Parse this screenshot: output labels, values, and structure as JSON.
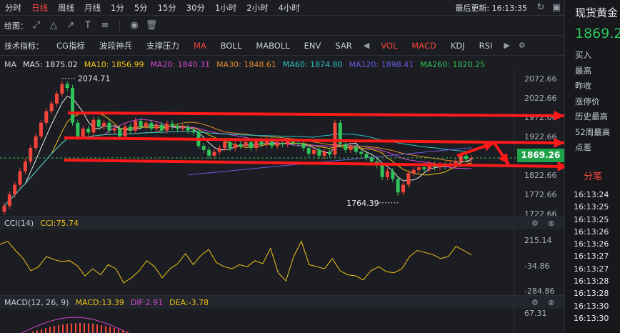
{
  "periods": [
    "分时",
    "日线",
    "周线",
    "月线",
    "1分",
    "5分",
    "15分",
    "30分",
    "1小时",
    "2小时",
    "4小时"
  ],
  "active_period": "日线",
  "last_update": "最后更新: 16:13:35",
  "draw_label": "绘图：",
  "indicator_label": "技术指标：",
  "indicators": [
    "CG指标",
    "波段神兵",
    "支撑压力",
    "MA",
    "BOLL",
    "MABOLL",
    "ENV",
    "SAR",
    "VOL",
    "MACD",
    "KDJ",
    "RSI"
  ],
  "indicators_active": [
    "MA",
    "VOL",
    "MACD"
  ],
  "ma_legend": [
    {
      "label": "MA",
      "color": "#c8ccd4"
    },
    {
      "label": "MA5: 1875.02",
      "color": "#e6e8ec"
    },
    {
      "label": "MA10: 1856.99",
      "color": "#f0c419"
    },
    {
      "label": "MA20: 1840.31",
      "color": "#d24bd2"
    },
    {
      "label": "MA30: 1848.61",
      "color": "#e08a2e"
    },
    {
      "label": "MA60: 1874.80",
      "color": "#2ec4c4"
    },
    {
      "label": "MA120: 1898.41",
      "color": "#6a5ae0"
    },
    {
      "label": "MA260: 1820.25",
      "color": "#2fc35a"
    }
  ],
  "price_axis": [
    "2072.66",
    "2022.66",
    "1972.66",
    "1922.66",
    "1872.66",
    "1822.66",
    "1772.66",
    "1722.66"
  ],
  "current_price_tag": "1869.26",
  "annotations": {
    "high": "2074.71",
    "low": "1764.39"
  },
  "cci_legend": [
    {
      "label": "CCI(14)",
      "color": "#c8ccd4"
    },
    {
      "label": "CCI:75.74",
      "color": "#f0c419"
    }
  ],
  "cci_axis": [
    "215.14",
    "-34.86",
    "-284.86"
  ],
  "macd_legend": [
    {
      "label": "MACD(12, 26, 9)",
      "color": "#c8ccd4"
    },
    {
      "label": "MACD:13.39",
      "color": "#f0c419"
    },
    {
      "label": "DIF:2.91",
      "color": "#d24bd2"
    },
    {
      "label": "DEA:-3.78",
      "color": "#f0c419"
    }
  ],
  "macd_axis": [
    "67.31"
  ],
  "side": {
    "name": "现货黄金",
    "price": "1869.2",
    "quote_labels": [
      "买入",
      "最高",
      "昨收",
      "涨停价",
      "历史最高",
      "52周最高",
      "点差"
    ],
    "fenbi_title": "分笔",
    "times": [
      "16:13:24",
      "16:13:25",
      "16:13:25",
      "16:13:26",
      "16:13:26",
      "16:13:27",
      "16:13:27",
      "16:13:28",
      "16:13:28",
      "16:13:30",
      "16:13:30"
    ]
  },
  "colors": {
    "up": "#f5453a",
    "down": "#2fc35a",
    "background": "#1b1d22",
    "arrow": "#ff1a1a"
  },
  "chart_data": [
    {
      "type": "candlestick",
      "y_axis_ticks": [
        2072.66,
        2022.66,
        1972.66,
        1922.66,
        1872.66,
        1822.66,
        1772.66,
        1722.66
      ],
      "ylim": [
        1716,
        2100
      ],
      "high_marker": 2074.71,
      "low_marker": 1764.39,
      "last_price": 1869.26,
      "close_series": [
        1745,
        1775,
        1800,
        1835,
        1860,
        1895,
        1925,
        1960,
        1990,
        2010,
        2035,
        2060,
        2050,
        1960,
        1925,
        1945,
        1935,
        1968,
        1950,
        1960,
        1940,
        1945,
        1925,
        1950,
        1940,
        1965,
        1950,
        1960,
        1945,
        1955,
        1940,
        1958,
        1950,
        1945,
        1948,
        1940,
        1935,
        1900,
        1890,
        1875,
        1885,
        1895,
        1910,
        1895,
        1905,
        1900,
        1910,
        1895,
        1912,
        1905,
        1915,
        1900,
        1908,
        1905,
        1912,
        1908,
        1905,
        1895,
        1880,
        1890,
        1875,
        1885,
        1878,
        1960,
        1905,
        1890,
        1898,
        1885,
        1880,
        1870,
        1860,
        1850,
        1820,
        1835,
        1815,
        1780,
        1800,
        1830,
        1838,
        1845,
        1840,
        1852,
        1845,
        1850,
        1848,
        1855,
        1860,
        1875,
        1866,
        1869.26
      ]
    },
    {
      "type": "line",
      "name": "CCI",
      "y_axis_ticks": [
        215.14,
        -34.86,
        -284.86
      ],
      "values": [
        180,
        210,
        120,
        40,
        -80,
        -40,
        60,
        30,
        10,
        20,
        -30,
        -130,
        -60,
        -120,
        -20,
        -60,
        -200,
        -150,
        -80,
        20,
        -40,
        -150,
        -60,
        -10,
        90,
        -20,
        70,
        130,
        0,
        -40,
        -60,
        -20,
        -40,
        20,
        -10,
        140,
        -100,
        -180,
        60,
        210,
        -20,
        -40,
        -60,
        40,
        -80,
        -120,
        -130,
        -170,
        -80,
        -40,
        -90,
        -100,
        -60,
        60,
        120,
        100,
        80,
        40,
        60,
        160,
        120,
        75.74
      ]
    },
    {
      "type": "line",
      "name": "MACD",
      "y_axis_ticks": [
        67.31
      ]
    }
  ]
}
